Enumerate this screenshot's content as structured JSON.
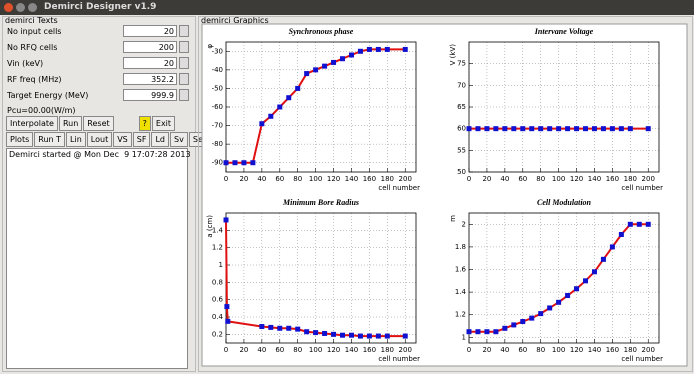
{
  "window": {
    "title": "Demirci Designer v1.9"
  },
  "left_panel": {
    "title": "demirci Texts",
    "fields": [
      {
        "label": "No input cells",
        "value": 20
      },
      {
        "label": "No RFQ cells",
        "value": 200
      },
      {
        "label": "Vin (keV)",
        "value": 20
      },
      {
        "label": "RF freq (MHz)",
        "value": 352.2
      },
      {
        "label": "Target Energy (MeV)",
        "value": 999.9
      }
    ],
    "pcu": "Pcu=00.00(W/m)",
    "buttons_row1": [
      "Interpolate",
      "Run",
      "Reset",
      "?",
      "Exit"
    ],
    "buttons_row2": [
      "Plots",
      "Run T",
      "Lin",
      "Lout",
      "VS",
      "SF",
      "Ld",
      "Sv",
      "Setup"
    ],
    "log": "Demirci started @ Mon Dec  9 17:07:28 2013"
  },
  "right_panel": {
    "title": "demirci Graphics"
  },
  "chart_data": [
    {
      "type": "line",
      "title": "Synchronous phase",
      "y_label": "φ",
      "x_label": "cell number",
      "grid": true,
      "line_color": "#e01010",
      "marker_color": "#1010d0",
      "x": [
        0,
        10,
        20,
        30,
        40,
        50,
        60,
        70,
        80,
        90,
        100,
        110,
        120,
        130,
        140,
        150,
        160,
        170,
        180,
        200
      ],
      "values": [
        -90,
        -90,
        -90,
        -90,
        -69,
        -65,
        -60,
        -55,
        -50,
        -42,
        -40,
        -38,
        -36,
        -34,
        -32,
        -30,
        -29,
        -29,
        -29,
        -29
      ],
      "xlim": [
        0,
        212
      ],
      "xticks": [
        0,
        20,
        40,
        60,
        80,
        100,
        120,
        140,
        160,
        180,
        200
      ],
      "ylim": [
        -95,
        -25
      ],
      "yticks": [
        -90,
        -80,
        -70,
        -60,
        -50,
        -40,
        -30
      ]
    },
    {
      "type": "line",
      "title": "Intervane Voltage",
      "y_label": "V (kV)",
      "x_label": "cell number",
      "grid": true,
      "line_color": "#e01010",
      "marker_color": "#1010d0",
      "x": [
        0,
        10,
        20,
        30,
        40,
        50,
        60,
        70,
        80,
        90,
        100,
        110,
        120,
        130,
        140,
        150,
        160,
        170,
        180,
        200
      ],
      "values": [
        60,
        60,
        60,
        60,
        60,
        60,
        60,
        60,
        60,
        60,
        60,
        60,
        60,
        60,
        60,
        60,
        60,
        60,
        60,
        60
      ],
      "xlim": [
        0,
        212
      ],
      "xticks": [
        0,
        20,
        40,
        60,
        80,
        100,
        120,
        140,
        160,
        180,
        200
      ],
      "ylim": [
        50,
        80
      ],
      "yticks": [
        50,
        55,
        60,
        65,
        70,
        75
      ]
    },
    {
      "type": "line",
      "title": "Minimum Bore Radius",
      "y_label": "a (cm)",
      "x_label": "cell number",
      "grid": true,
      "line_color": "#e01010",
      "marker_color": "#1010d0",
      "x": [
        0,
        1,
        2,
        40,
        50,
        60,
        70,
        80,
        90,
        100,
        110,
        120,
        130,
        140,
        150,
        160,
        170,
        180,
        200
      ],
      "values": [
        1.52,
        0.52,
        0.35,
        0.29,
        0.28,
        0.27,
        0.27,
        0.26,
        0.23,
        0.22,
        0.21,
        0.2,
        0.19,
        0.19,
        0.18,
        0.18,
        0.18,
        0.18,
        0.18
      ],
      "xlim": [
        0,
        212
      ],
      "xticks": [
        0,
        20,
        40,
        60,
        80,
        100,
        120,
        140,
        160,
        180,
        200
      ],
      "ylim": [
        0.1,
        1.6
      ],
      "yticks": [
        0.2,
        0.4,
        0.6,
        0.8,
        1,
        1.2,
        1.4
      ]
    },
    {
      "type": "line",
      "title": "Cell Modulation",
      "y_label": "m",
      "x_label": "cell number",
      "grid": true,
      "line_color": "#e01010",
      "marker_color": "#1010d0",
      "x": [
        0,
        10,
        20,
        30,
        40,
        50,
        60,
        70,
        80,
        90,
        100,
        110,
        120,
        130,
        140,
        150,
        160,
        170,
        180,
        190,
        200
      ],
      "values": [
        1.05,
        1.05,
        1.05,
        1.05,
        1.08,
        1.11,
        1.14,
        1.17,
        1.21,
        1.26,
        1.31,
        1.37,
        1.43,
        1.5,
        1.58,
        1.69,
        1.8,
        1.91,
        2,
        2,
        2
      ],
      "xlim": [
        0,
        212
      ],
      "xticks": [
        0,
        20,
        40,
        60,
        80,
        100,
        120,
        140,
        160,
        180,
        200
      ],
      "ylim": [
        0.95,
        2.1
      ],
      "yticks": [
        1,
        1.2,
        1.4,
        1.6,
        1.8,
        2
      ]
    }
  ]
}
